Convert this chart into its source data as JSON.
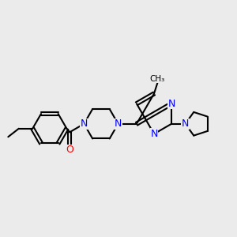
{
  "bg_color": "#ebebeb",
  "bond_color": "#000000",
  "N_color": "#0000ff",
  "O_color": "#ff0000",
  "C_color": "#000000",
  "line_width": 1.5,
  "font_size": 9,
  "fig_width": 3.0,
  "fig_height": 3.0,
  "dpi": 100,
  "xlim": [
    0,
    10
  ],
  "ylim": [
    0,
    10
  ]
}
